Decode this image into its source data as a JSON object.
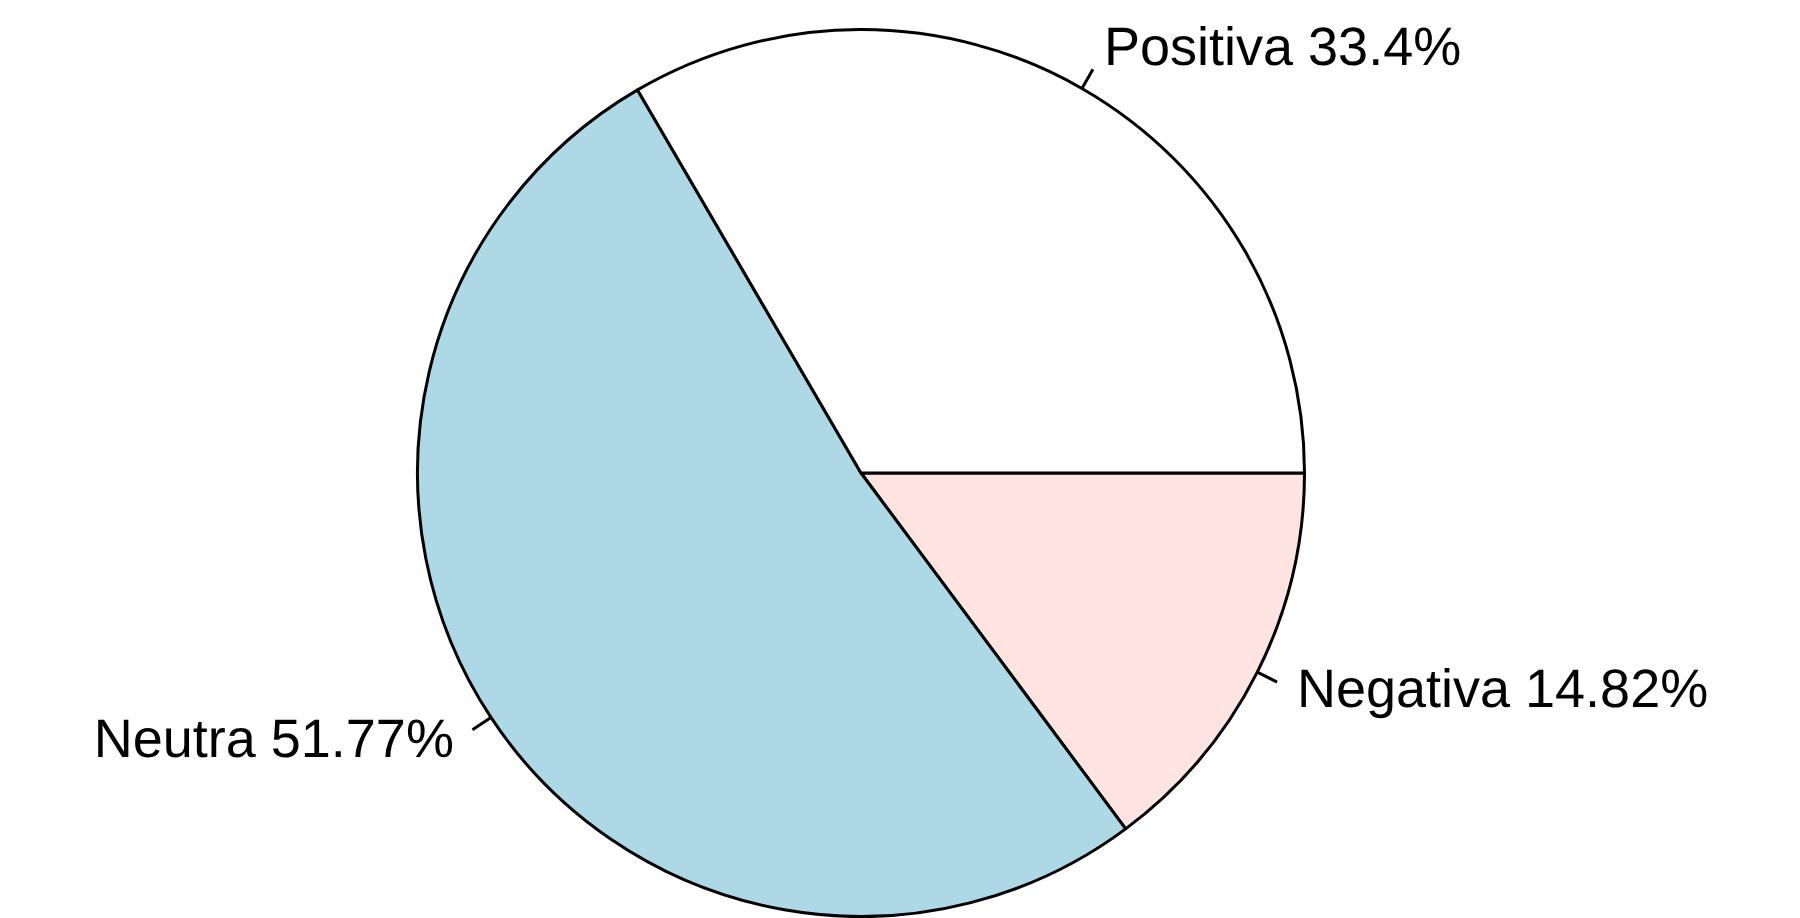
{
  "chart_data": {
    "type": "pie",
    "categories": [
      "Negativa",
      "Neutra",
      "Positiva"
    ],
    "values": [
      14.82,
      51.77,
      33.4
    ],
    "value_labels": [
      "14.82%",
      "51.77%",
      "33.4%"
    ],
    "colors": [
      "#ffe4e1",
      "#add8e6",
      "#ffffff"
    ],
    "legend": false
  }
}
